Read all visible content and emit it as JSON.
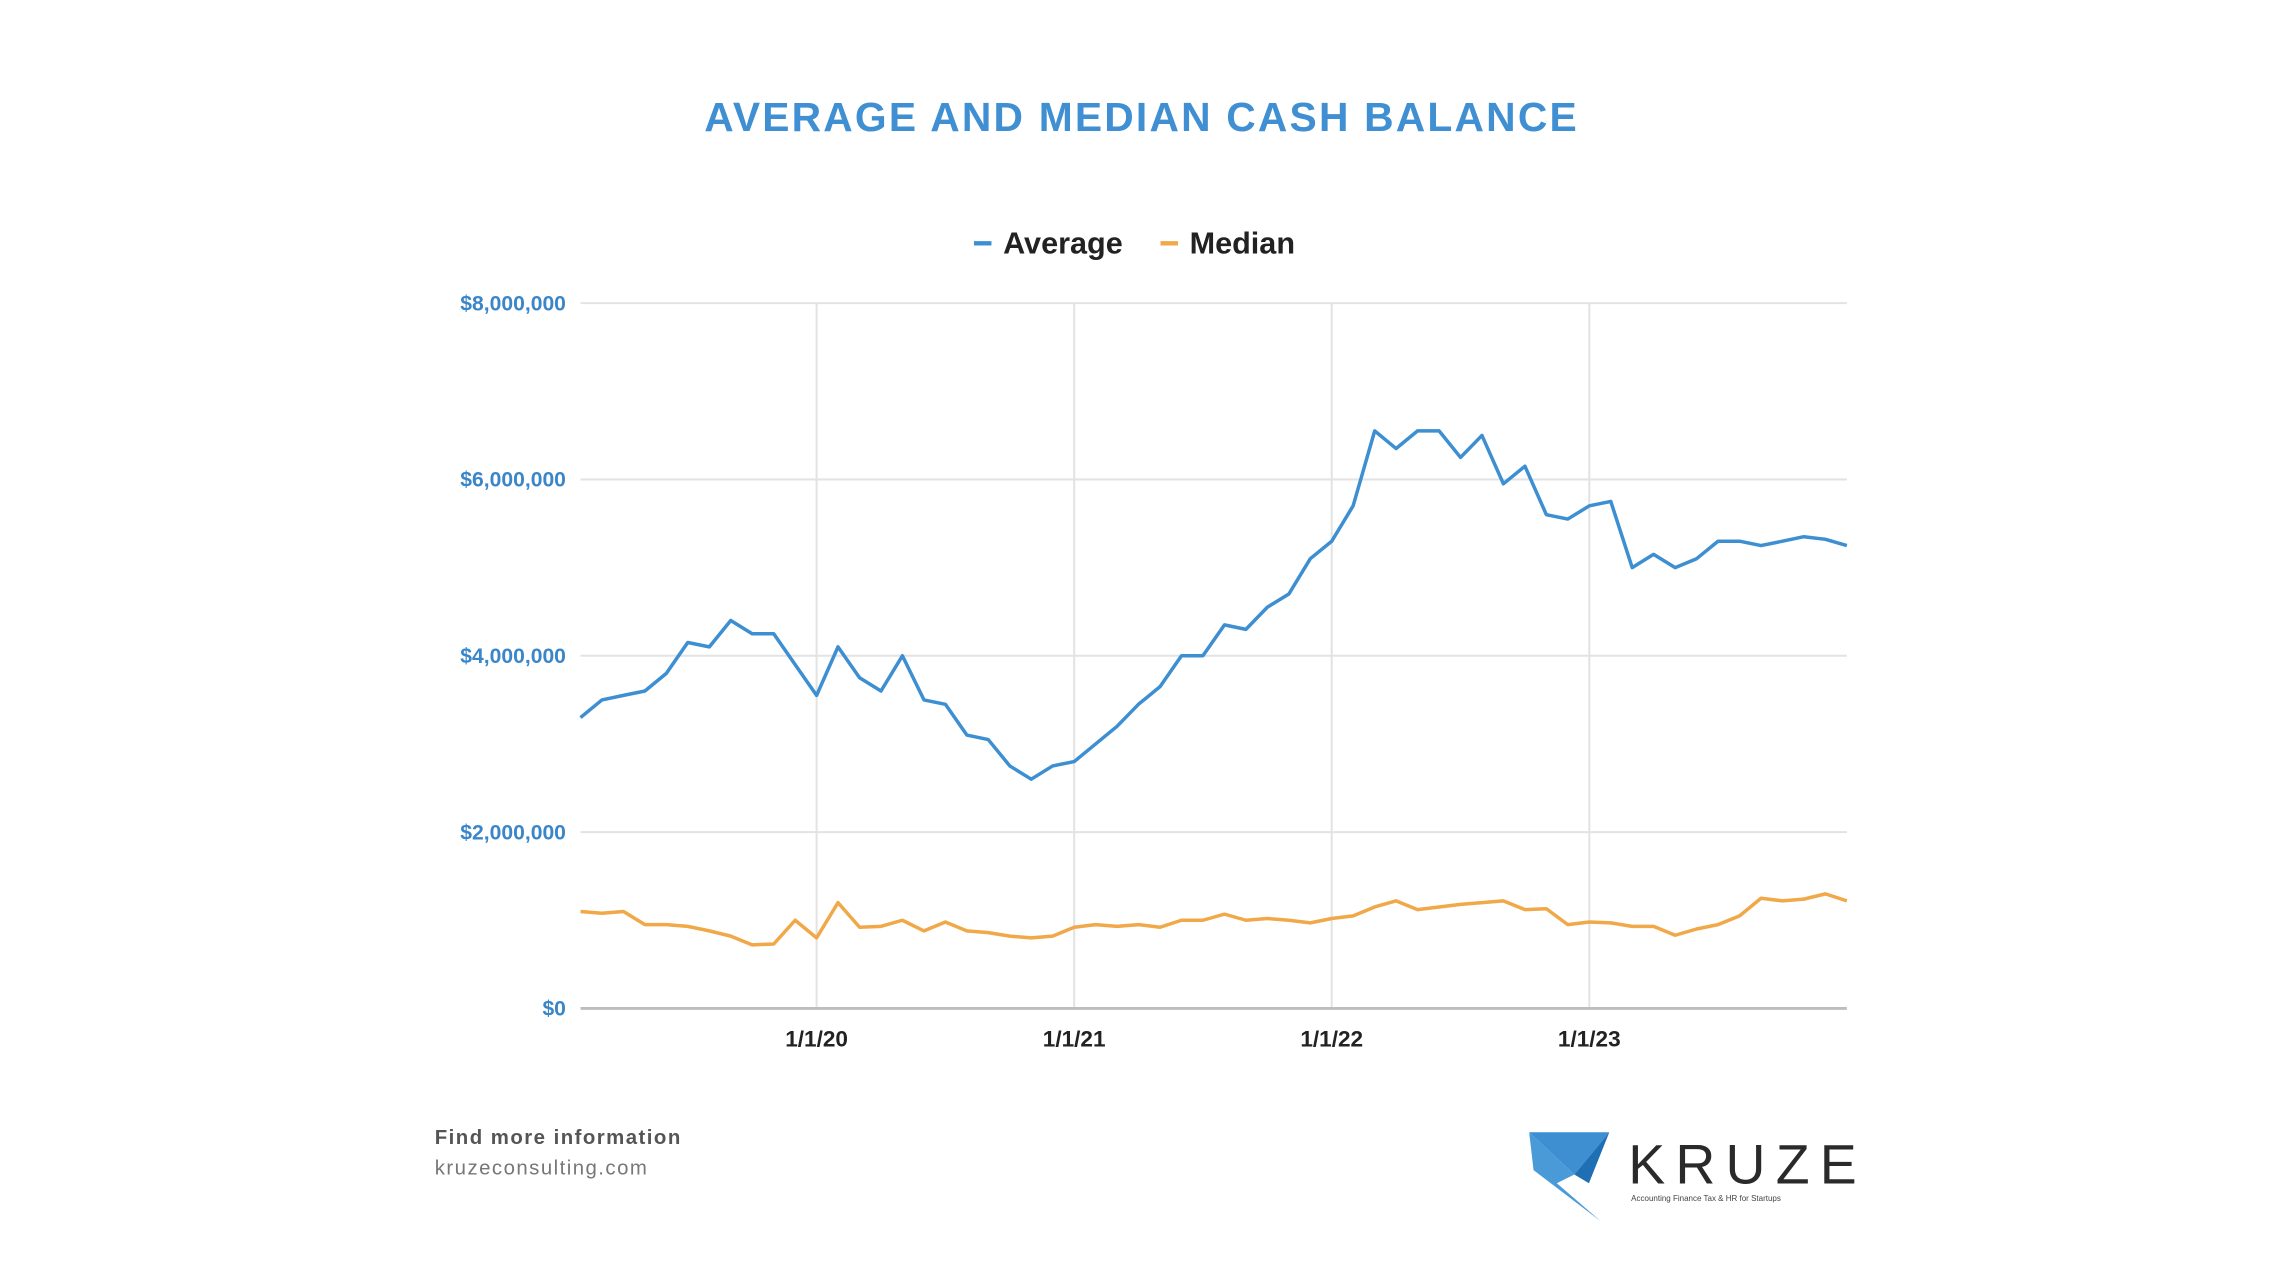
{
  "chart_data": {
    "type": "line",
    "title": "AVERAGE AND MEDIAN CASH BALANCE",
    "xlabel": "",
    "ylabel": "",
    "x_start": "2019-02",
    "x_frequency": "monthly",
    "x_ticks": [
      "1/1/20",
      "1/1/21",
      "1/1/22",
      "1/1/23"
    ],
    "x_tick_month_index": [
      11,
      23,
      35,
      47
    ],
    "y_ticks": [
      "$0",
      "$2,000,000",
      "$4,000,000",
      "$6,000,000",
      "$8,000,000"
    ],
    "y_tick_values": [
      0,
      2000000,
      4000000,
      6000000,
      8000000
    ],
    "ylim": [
      0,
      8000000
    ],
    "grid": true,
    "legend_position": "top-center",
    "series": [
      {
        "name": "Average",
        "color": "#3d8fd1",
        "values": [
          3300000,
          3500000,
          3550000,
          3600000,
          3800000,
          4150000,
          4100000,
          4400000,
          4250000,
          4250000,
          3900000,
          3550000,
          4100000,
          3750000,
          3600000,
          4000000,
          3500000,
          3450000,
          3100000,
          3050000,
          2750000,
          2600000,
          2750000,
          2800000,
          3000000,
          3200000,
          3450000,
          3650000,
          4000000,
          4000000,
          4350000,
          4300000,
          4550000,
          4700000,
          5100000,
          5300000,
          5700000,
          6550000,
          6350000,
          6550000,
          6550000,
          6250000,
          6500000,
          5950000,
          6150000,
          5600000,
          5550000,
          5700000,
          5750000,
          5000000,
          5150000,
          5000000,
          5100000,
          5300000,
          5300000,
          5250000,
          5300000,
          5350000,
          5320000,
          5250000
        ]
      },
      {
        "name": "Median",
        "color": "#f0a848",
        "values": [
          1100000,
          1080000,
          1100000,
          950000,
          950000,
          930000,
          880000,
          820000,
          720000,
          730000,
          1000000,
          800000,
          1200000,
          920000,
          930000,
          1000000,
          880000,
          980000,
          880000,
          860000,
          820000,
          800000,
          820000,
          920000,
          950000,
          930000,
          950000,
          920000,
          1000000,
          1000000,
          1070000,
          1000000,
          1020000,
          1000000,
          970000,
          1020000,
          1050000,
          1150000,
          1220000,
          1120000,
          1150000,
          1180000,
          1200000,
          1220000,
          1120000,
          1130000,
          950000,
          980000,
          970000,
          930000,
          930000,
          830000,
          900000,
          950000,
          1050000,
          1250000,
          1220000,
          1240000,
          1300000,
          1220000
        ]
      }
    ]
  },
  "footer": {
    "line1": "Find more information",
    "line2": "kruzeconsulting.com"
  },
  "logo": {
    "brand": "KRUZE",
    "tagline": "Accounting Finance Tax & HR for Startups",
    "color": "#3d8fd1"
  }
}
